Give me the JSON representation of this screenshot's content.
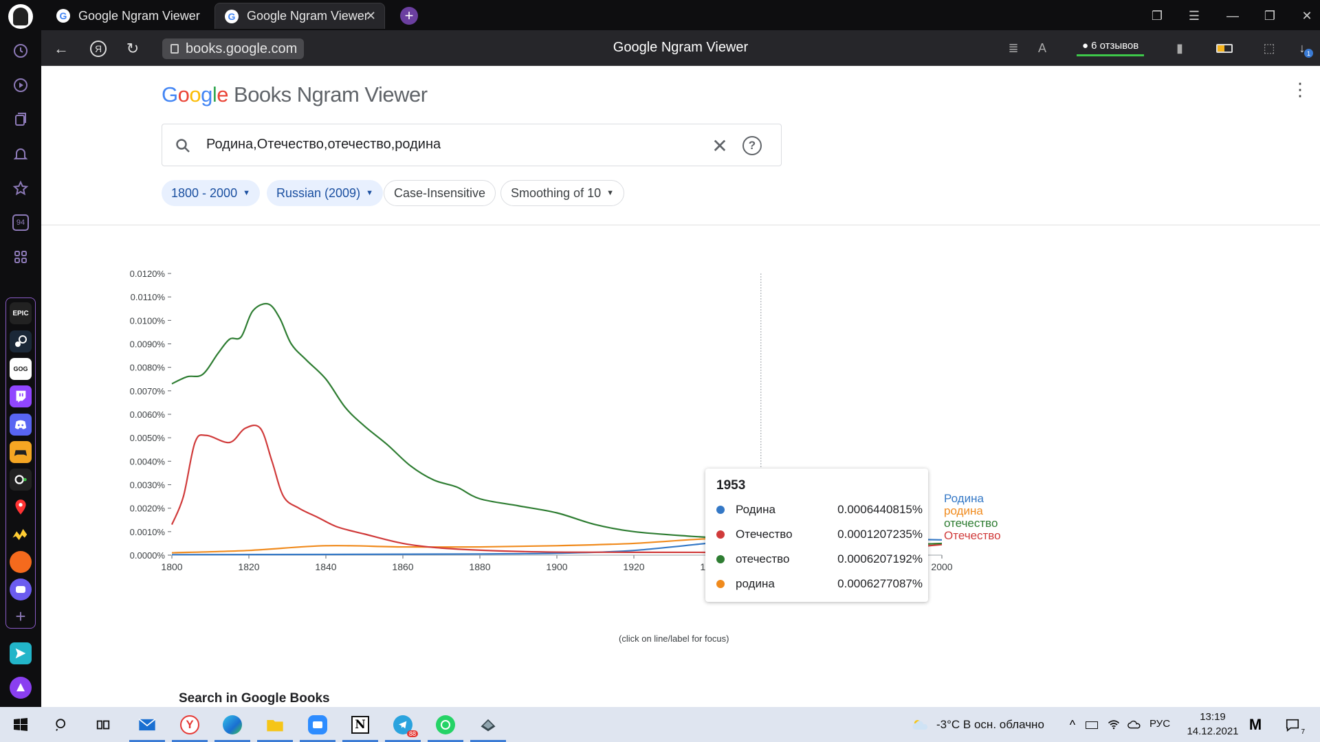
{
  "browser": {
    "tabs": [
      {
        "title": "Google Ngram Viewer",
        "active": false
      },
      {
        "title": "Google Ngram Viewer",
        "active": true
      }
    ],
    "address": "books.google.com",
    "page_title": "Google Ngram Viewer",
    "reviews": "6 отзывов",
    "rail_badge": "94",
    "tray_apps": [
      "EPIC",
      "steam",
      "gog",
      "twitch",
      "discord",
      "games",
      "obs",
      "maps",
      "yandex-games",
      "fire",
      "chat"
    ]
  },
  "ngram": {
    "logo_google": [
      "G",
      "o",
      "o",
      "g",
      "l",
      "e"
    ],
    "logo_colors": [
      "#4285f4",
      "#ea4335",
      "#fbbc05",
      "#4285f4",
      "#34a853",
      "#ea4335"
    ],
    "logo_rest": "Books Ngram Viewer",
    "query": "Родина,Отечество,отечество,родина",
    "chips": {
      "years": "1800 - 2000",
      "corpus": "Russian (2009)",
      "case": "Case-Insensitive",
      "smoothing": "Smoothing of 10"
    },
    "focus_hint": "(click on line/label for focus)",
    "search_books": "Search in Google Books"
  },
  "chart_data": {
    "type": "line",
    "xlim": [
      1800,
      2000
    ],
    "ylim": [
      0,
      0.012
    ],
    "x_ticks": [
      "1800",
      "1820",
      "1840",
      "1860",
      "1880",
      "1900",
      "1920",
      "1940",
      "1960",
      "1980",
      "2000"
    ],
    "y_ticks": [
      "0.0000%",
      "0.0010%",
      "0.0020%",
      "0.0030%",
      "0.0040%",
      "0.0050%",
      "0.0060%",
      "0.0070%",
      "0.0080%",
      "0.0090%",
      "0.0100%",
      "0.0110%",
      "0.0120%"
    ],
    "grid": false,
    "legend": "right end labels",
    "focus_year": 1953,
    "series": [
      {
        "name": "Родина",
        "color": "#3478c6",
        "points": [
          [
            1800,
            2e-05
          ],
          [
            1840,
            3e-05
          ],
          [
            1880,
            5e-05
          ],
          [
            1900,
            8e-05
          ],
          [
            1920,
            0.0002
          ],
          [
            1945,
            0.0006
          ],
          [
            1953,
            0.00064
          ],
          [
            1960,
            0.0006
          ],
          [
            1970,
            0.00065
          ],
          [
            1980,
            0.0007
          ],
          [
            1990,
            0.00068
          ],
          [
            2000,
            0.00065
          ]
        ]
      },
      {
        "name": "Отечество",
        "color": "#d03a3a",
        "points": [
          [
            1800,
            0.0013
          ],
          [
            1803,
            0.0025
          ],
          [
            1806,
            0.0048
          ],
          [
            1809,
            0.0051
          ],
          [
            1815,
            0.0048
          ],
          [
            1819,
            0.0054
          ],
          [
            1823,
            0.0054
          ],
          [
            1826,
            0.004
          ],
          [
            1829,
            0.0025
          ],
          [
            1833,
            0.002
          ],
          [
            1838,
            0.0016
          ],
          [
            1843,
            0.0012
          ],
          [
            1850,
            0.0009
          ],
          [
            1860,
            0.0005
          ],
          [
            1870,
            0.0003
          ],
          [
            1885,
            0.00018
          ],
          [
            1900,
            0.00013
          ],
          [
            1920,
            0.00012
          ],
          [
            1953,
            0.00012
          ],
          [
            1980,
            0.00014
          ],
          [
            1990,
            0.0003
          ],
          [
            2000,
            0.00045
          ]
        ]
      },
      {
        "name": "отечество",
        "color": "#2e7d32",
        "points": [
          [
            1800,
            0.0073
          ],
          [
            1804,
            0.0076
          ],
          [
            1808,
            0.0077
          ],
          [
            1812,
            0.0086
          ],
          [
            1815,
            0.0092
          ],
          [
            1818,
            0.0093
          ],
          [
            1821,
            0.0104
          ],
          [
            1825,
            0.0107
          ],
          [
            1828,
            0.0101
          ],
          [
            1831,
            0.009
          ],
          [
            1835,
            0.0083
          ],
          [
            1840,
            0.0075
          ],
          [
            1845,
            0.0063
          ],
          [
            1850,
            0.0055
          ],
          [
            1856,
            0.0047
          ],
          [
            1862,
            0.0038
          ],
          [
            1868,
            0.0032
          ],
          [
            1874,
            0.0029
          ],
          [
            1880,
            0.0024
          ],
          [
            1890,
            0.0021
          ],
          [
            1900,
            0.0018
          ],
          [
            1910,
            0.0013
          ],
          [
            1920,
            0.001
          ],
          [
            1935,
            0.0008
          ],
          [
            1953,
            0.00062
          ],
          [
            1970,
            0.0004
          ],
          [
            1980,
            0.00038
          ],
          [
            2000,
            0.0005
          ]
        ]
      },
      {
        "name": "родина",
        "color": "#f08a1c",
        "points": [
          [
            1800,
            0.0001
          ],
          [
            1820,
            0.0002
          ],
          [
            1840,
            0.0004
          ],
          [
            1860,
            0.00035
          ],
          [
            1880,
            0.00035
          ],
          [
            1900,
            0.0004
          ],
          [
            1920,
            0.0005
          ],
          [
            1940,
            0.0007
          ],
          [
            1953,
            0.00063
          ],
          [
            1970,
            0.00045
          ],
          [
            1985,
            0.00042
          ],
          [
            2000,
            0.0005
          ]
        ]
      }
    ],
    "tooltip": {
      "year": "1953",
      "rows": [
        {
          "name": "Родина",
          "value": "0.0006440815%",
          "color": "#3478c6"
        },
        {
          "name": "Отечество",
          "value": "0.0001207235%",
          "color": "#d03a3a"
        },
        {
          "name": "отечество",
          "value": "0.0006207192%",
          "color": "#2e7d32"
        },
        {
          "name": "родина",
          "value": "0.0006277087%",
          "color": "#f08a1c"
        }
      ]
    },
    "end_labels": [
      {
        "name": "Родина",
        "color": "#3478c6"
      },
      {
        "name": "родина",
        "color": "#f08a1c"
      },
      {
        "name": "отечество",
        "color": "#2e7d32"
      },
      {
        "name": "Отечество",
        "color": "#d03a3a"
      }
    ]
  },
  "taskbar": {
    "weather": "-3°C  В осн. облачно",
    "lang": "РУС",
    "time": "13:19",
    "date": "14.12.2021",
    "telegram_badge": "88",
    "notif_count": "7"
  }
}
